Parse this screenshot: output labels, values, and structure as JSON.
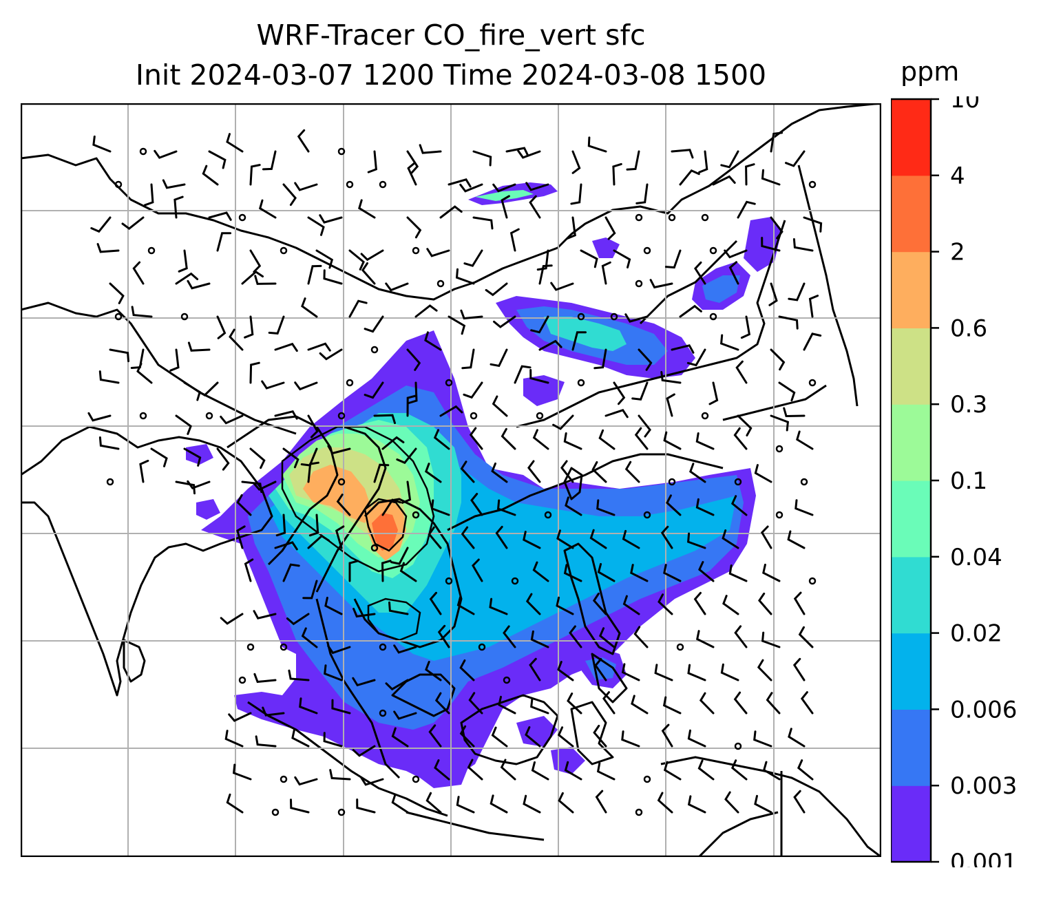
{
  "title_line1": "WRF-Tracer CO_fire_vert sfc",
  "title_line2": "Init 2024-03-07 1200 Time 2024-03-08 1500",
  "colorbar": {
    "unit": "ppm",
    "ticks": [
      "0.001",
      "0.003",
      "0.006",
      "0.02",
      "0.04",
      "0.1",
      "0.3",
      "0.6",
      "2",
      "4",
      "10"
    ],
    "colors": [
      "#6a2cf8",
      "#3677f4",
      "#03b2ec",
      "#30dcd2",
      "#6afcb8",
      "#9cfa98",
      "#cde186",
      "#feae5e",
      "#fe7038",
      "#ff2a16"
    ]
  },
  "map": {
    "gridline_color": "#b0b0b0",
    "coast_color": "#000000",
    "barb_color": "#000000"
  }
}
